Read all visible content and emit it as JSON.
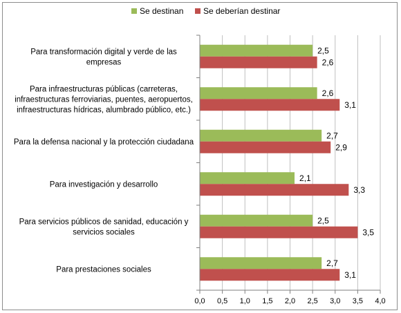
{
  "chart_data": {
    "type": "bar",
    "orientation": "horizontal",
    "categories": [
      [
        "Para transformación digital y verde de las",
        "empresas"
      ],
      [
        "Para infraestructuras públicas (carreteras,",
        "infraestructuras ferroviarias, puentes, aeropuertos,",
        "infraestructuras hídricas, alumbrado público, etc.)"
      ],
      [
        "Para la defensa nacional y la protección ciudadana"
      ],
      [
        "Para investigación y desarrollo"
      ],
      [
        "Para servicios públicos de sanidad, educación y",
        "servicios sociales"
      ],
      [
        "Para prestaciones sociales"
      ]
    ],
    "series": [
      {
        "name": "Se destinan",
        "color": "#9bbb59",
        "values": [
          2.5,
          2.6,
          2.7,
          2.1,
          2.5,
          2.7
        ],
        "labels": [
          "2,5",
          "2,6",
          "2,7",
          "2,1",
          "2,5",
          "2,7"
        ]
      },
      {
        "name": "Se deberían destinar",
        "color": "#c0504d",
        "values": [
          2.6,
          3.1,
          2.9,
          3.3,
          3.5,
          3.1
        ],
        "labels": [
          "2,6",
          "3,1",
          "2,9",
          "3,3",
          "3,5",
          "3,1"
        ]
      }
    ],
    "xlim": [
      0,
      4
    ],
    "ticks": [
      0,
      0.5,
      1.0,
      1.5,
      2.0,
      2.5,
      3.0,
      3.5,
      4.0
    ],
    "tick_labels": [
      "0,0",
      "0,5",
      "1,0",
      "1,5",
      "2,0",
      "2,5",
      "3,0",
      "3,5",
      "4,0"
    ],
    "grid": "vertical",
    "legend": "top"
  }
}
